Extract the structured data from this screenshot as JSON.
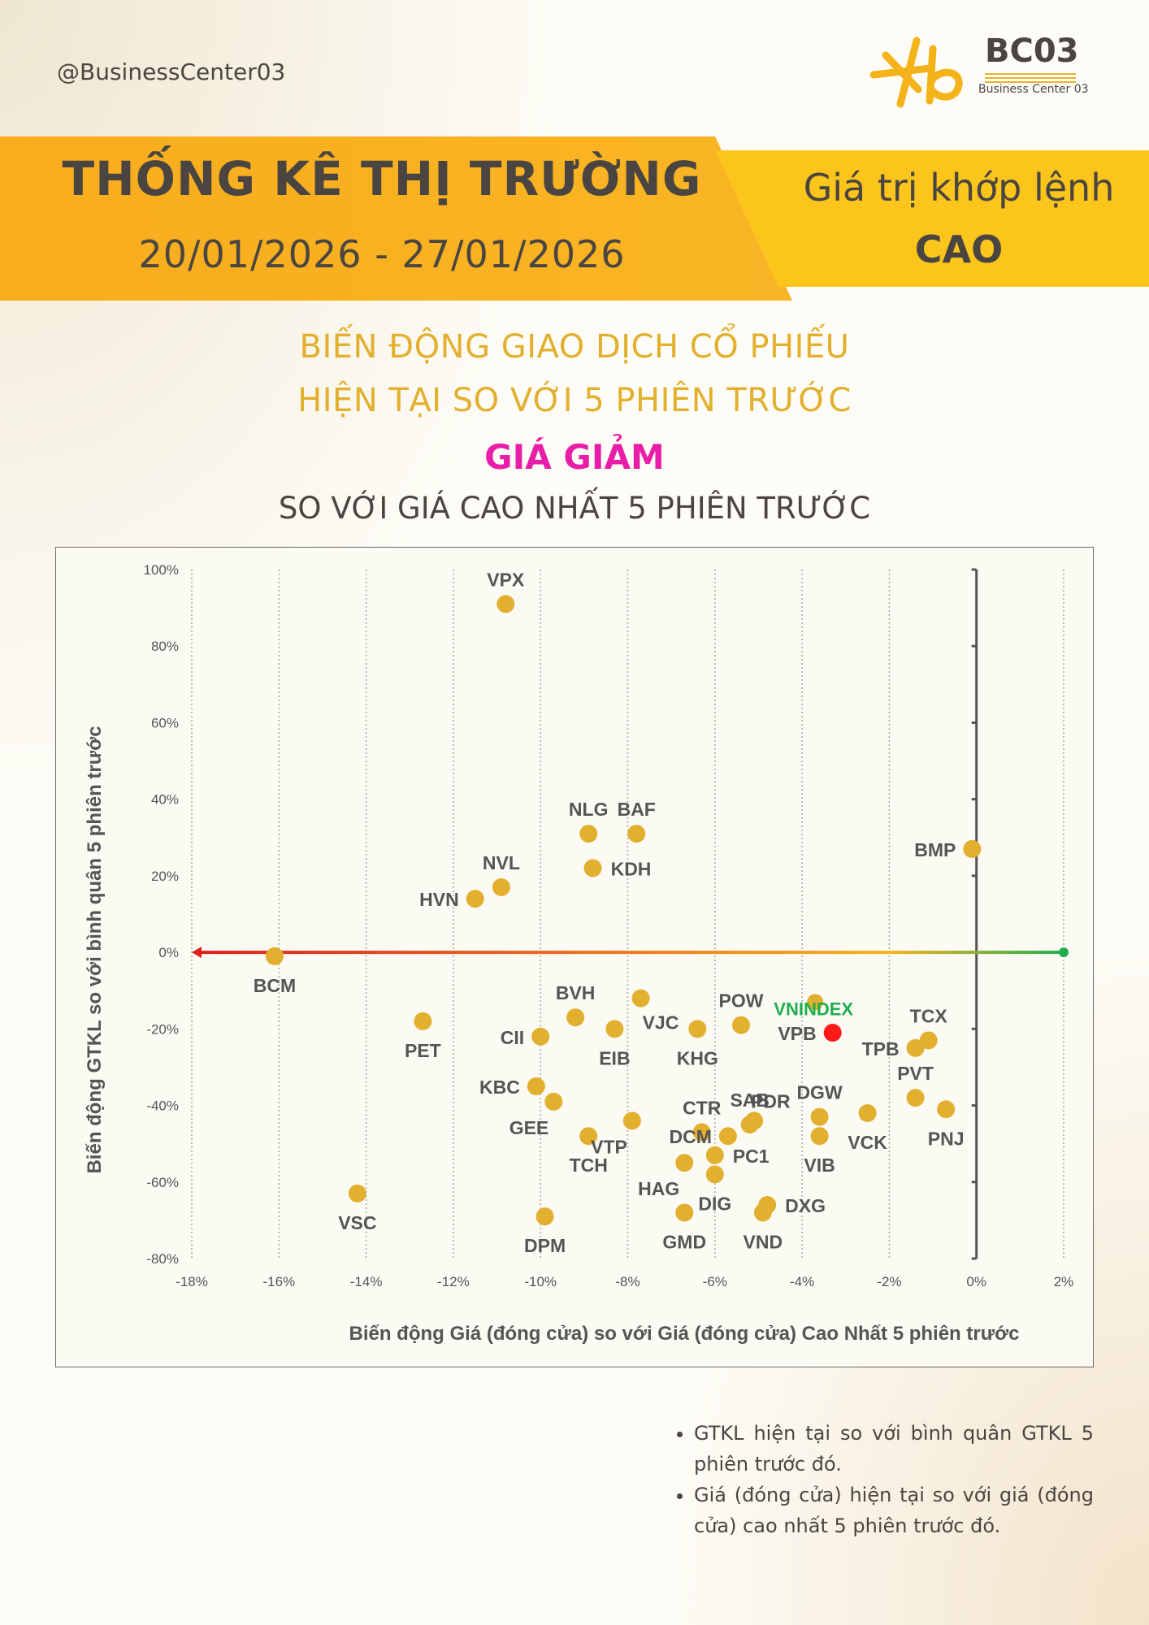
{
  "header": {
    "handle": "@BusinessCenter03",
    "logo_title": "BC03",
    "logo_subtitle": "Business Center 03",
    "title": "THỐNG KÊ THỊ TRƯỜNG",
    "date_range": "20/01/2026 - 27/01/2026",
    "right_line1": "Giá trị khớp lệnh",
    "right_line2": "CAO"
  },
  "subtitle": {
    "line1": "BIẾN ĐỘNG GIAO DỊCH CỔ PHIẾU",
    "line2": "HIỆN TẠI SO VỚI 5 PHIÊN TRƯỚC",
    "line3": "GIÁ GIẢM",
    "line4": "SO VỚI GIÁ CAO NHẤT 5 PHIÊN TRƯỚC"
  },
  "colors": {
    "accent": "#f8ad1d",
    "point": "#e2b02e",
    "index_point": "#ff1a1a",
    "index_label": "#1fae4f",
    "highlight": "#e91ea8"
  },
  "chart_data": {
    "type": "scatter",
    "xlabel": "Biến động Giá (đóng cửa) so với Giá (đóng cửa) Cao Nhất 5 phiên trước",
    "ylabel": "Biến động GTKL so với bình quân 5 phiên trước",
    "xlim": [
      -18,
      2
    ],
    "ylim": [
      -80,
      100
    ],
    "x_ticks": [
      -18,
      -16,
      -14,
      -12,
      -10,
      -8,
      -6,
      -4,
      -2,
      0,
      2
    ],
    "x_tick_labels": [
      "-18%",
      "-16%",
      "-14%",
      "-12%",
      "-10%",
      "-8%",
      "-6%",
      "-4%",
      "-2%",
      "0%",
      "2%"
    ],
    "y_ticks": [
      100,
      80,
      60,
      40,
      20,
      0,
      -20,
      -40,
      -60,
      -80
    ],
    "y_tick_labels": [
      "100%",
      "80%",
      "60%",
      "40%",
      "20%",
      "0%",
      "-20%",
      "-40%",
      "-60%",
      "-80%"
    ],
    "points": [
      {
        "label": "VPX",
        "x": -10.8,
        "y": 91,
        "lpos": "above"
      },
      {
        "label": "NLG",
        "x": -8.9,
        "y": 31,
        "lpos": "above"
      },
      {
        "label": "BAF",
        "x": -7.8,
        "y": 31,
        "lpos": "above"
      },
      {
        "label": "KDH",
        "x": -8.8,
        "y": 22,
        "lpos": "right"
      },
      {
        "label": "NVL",
        "x": -10.9,
        "y": 17,
        "lpos": "above"
      },
      {
        "label": "HVN",
        "x": -11.5,
        "y": 14,
        "lpos": "left"
      },
      {
        "label": "BMP",
        "x": -0.1,
        "y": 27,
        "lpos": "left"
      },
      {
        "label": "BCM",
        "x": -16.1,
        "y": -1,
        "lpos": "below"
      },
      {
        "label": "BVH",
        "x": -9.2,
        "y": -17,
        "lpos": "above"
      },
      {
        "label": "PET",
        "x": -12.7,
        "y": -18,
        "lpos": "below"
      },
      {
        "label": "CII",
        "x": -10.0,
        "y": -22,
        "lpos": "left"
      },
      {
        "label": "VJC",
        "x": -7.7,
        "y": -12,
        "lpos": "belowright"
      },
      {
        "label": "EIB",
        "x": -8.3,
        "y": -20,
        "lpos": "below"
      },
      {
        "label": "KHG",
        "x": -6.4,
        "y": -20,
        "lpos": "below"
      },
      {
        "label": "POW",
        "x": -5.4,
        "y": -19,
        "lpos": "above"
      },
      {
        "label": "KBC",
        "x": -10.1,
        "y": -35,
        "lpos": "left"
      },
      {
        "label": "GEE",
        "x": -9.7,
        "y": -39,
        "lpos": "belowleft"
      },
      {
        "label": "TCH",
        "x": -8.9,
        "y": -48,
        "lpos": "below"
      },
      {
        "label": "VTP",
        "x": -7.9,
        "y": -44,
        "lpos": "belowleft"
      },
      {
        "label": "CTR",
        "x": -6.3,
        "y": -47,
        "lpos": "above"
      },
      {
        "label": "DCM",
        "x": -5.7,
        "y": -48,
        "lpos": "left"
      },
      {
        "label": "SAB",
        "x": -5.2,
        "y": -45,
        "lpos": "above"
      },
      {
        "label": "PDR",
        "x": -5.1,
        "y": -44,
        "lpos": "aboveright"
      },
      {
        "label": "PC1",
        "x": -6.0,
        "y": -53,
        "lpos": "right"
      },
      {
        "label": "HAG",
        "x": -6.7,
        "y": -55,
        "lpos": "belowleft"
      },
      {
        "label": "DIG",
        "x": -6.0,
        "y": -58,
        "lpos": "below"
      },
      {
        "label": "GMD",
        "x": -6.7,
        "y": -68,
        "lpos": "below"
      },
      {
        "label": "DPM",
        "x": -9.9,
        "y": -69,
        "lpos": "below"
      },
      {
        "label": "VSC",
        "x": -14.2,
        "y": -63,
        "lpos": "below"
      },
      {
        "label": "DXG",
        "x": -4.8,
        "y": -66,
        "lpos": "right"
      },
      {
        "label": "VND",
        "x": -4.9,
        "y": -68,
        "lpos": "below"
      },
      {
        "label": "DGW",
        "x": -3.6,
        "y": -43,
        "lpos": "above"
      },
      {
        "label": "VIB",
        "x": -3.6,
        "y": -48,
        "lpos": "below"
      },
      {
        "label": "VCK",
        "x": -2.5,
        "y": -42,
        "lpos": "below"
      },
      {
        "label": "TPB",
        "x": -1.4,
        "y": -25,
        "lpos": "left"
      },
      {
        "label": "TCX",
        "x": -1.1,
        "y": -23,
        "lpos": "above"
      },
      {
        "label": "PVT",
        "x": -1.4,
        "y": -38,
        "lpos": "above"
      },
      {
        "label": "PNJ",
        "x": -0.7,
        "y": -41,
        "lpos": "below"
      },
      {
        "label": "VPB",
        "x": -3.3,
        "y": -21,
        "lpos": "left",
        "highlight": true
      },
      {
        "label": "VNINDEX",
        "x": -3.7,
        "y": -13,
        "lpos": "index"
      }
    ],
    "zero_line": {
      "y": 0,
      "x_from": 2,
      "x_to": -18,
      "gradient": [
        "#e01e1e",
        "#f7b21e",
        "#1fae4f"
      ]
    }
  },
  "notes": [
    "GTKL hiện tại so với bình quân GTKL 5 phiên trước đó.",
    "Giá (đóng cửa) hiện tại so với giá (đóng cửa) cao nhất 5 phiên trước đó."
  ]
}
